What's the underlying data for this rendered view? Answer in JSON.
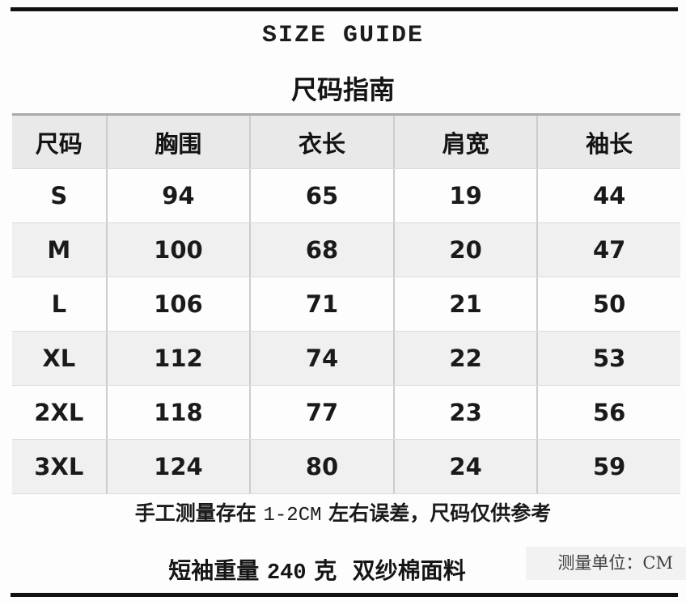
{
  "header": {
    "title_en": "SIZE GUIDE",
    "title_zh": "尺码指南"
  },
  "table": {
    "columns": [
      "尺码",
      "胸围",
      "衣长",
      "肩宽",
      "袖长"
    ],
    "rows": [
      {
        "size": "S",
        "chest": "94",
        "length": "65",
        "shoulder": "19",
        "sleeve": "44"
      },
      {
        "size": "M",
        "chest": "100",
        "length": "68",
        "shoulder": "20",
        "sleeve": "47"
      },
      {
        "size": "L",
        "chest": "106",
        "length": "71",
        "shoulder": "21",
        "sleeve": "50"
      },
      {
        "size": "XL",
        "chest": "112",
        "length": "74",
        "shoulder": "22",
        "sleeve": "53"
      },
      {
        "size": "2XL",
        "chest": "118",
        "length": "77",
        "shoulder": "23",
        "sleeve": "56"
      },
      {
        "size": "3XL",
        "chest": "124",
        "length": "80",
        "shoulder": "24",
        "sleeve": "59"
      }
    ]
  },
  "footer": {
    "note_prefix": "手工测量存在 ",
    "note_range": "1-2CM",
    "note_suffix": " 左右误差，尺码仅供参考",
    "material_prefix": "短袖重量 ",
    "material_weight": "240",
    "material_suffix": " 克  双纱棉面料",
    "unit_label": "测量单位：CM"
  },
  "colors": {
    "header_row_bg": "#e9e9e9",
    "alt_row_bg": "#f0f0f0",
    "grid_line": "#cccccc",
    "rule_black": "#111111",
    "unit_box_bg": "#f2f2f2"
  }
}
